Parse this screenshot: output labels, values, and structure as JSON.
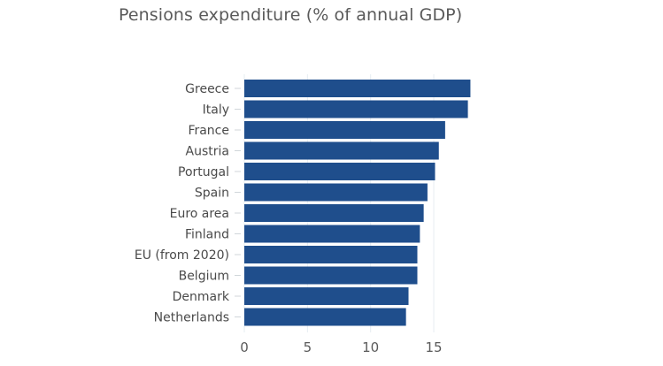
{
  "chart_data": {
    "type": "bar",
    "orientation": "horizontal",
    "title": "Pensions expenditure (% of annual GDP)",
    "xlabel": "",
    "ylabel": "",
    "categories": [
      "Greece",
      "Italy",
      "France",
      "Austria",
      "Portugal",
      "Spain",
      "Euro area",
      "Finland",
      "EU (from 2020)",
      "Belgium",
      "Denmark",
      "Netherlands"
    ],
    "values": [
      17.9,
      17.7,
      15.9,
      15.4,
      15.1,
      14.5,
      14.2,
      13.9,
      13.7,
      13.7,
      13.0,
      12.8
    ],
    "xlim": [
      0,
      18
    ],
    "xticks": [
      0,
      5,
      10,
      15
    ],
    "xtick_labels": [
      "0",
      "5",
      "10",
      "15"
    ],
    "grid": "vertical",
    "legend": "none",
    "bar_color": "#1f4e8c",
    "grid_color": "#e6edf2"
  }
}
